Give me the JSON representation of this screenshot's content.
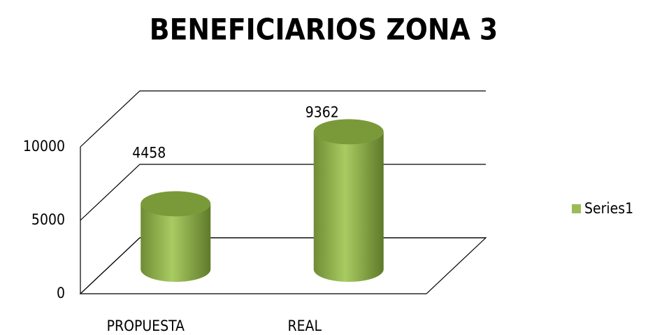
{
  "chart_data": {
    "type": "bar3d",
    "title": "BENEFICIARIOS  ZONA 3",
    "categories": [
      "PROPUESTA",
      "REAL"
    ],
    "series": [
      {
        "name": "Series1",
        "color": "#9bbb59",
        "values": [
          4458,
          9362
        ]
      }
    ],
    "ylim": [
      0,
      10000
    ],
    "yticks": [
      0,
      5000,
      10000
    ],
    "grid": true,
    "legend": "right"
  }
}
